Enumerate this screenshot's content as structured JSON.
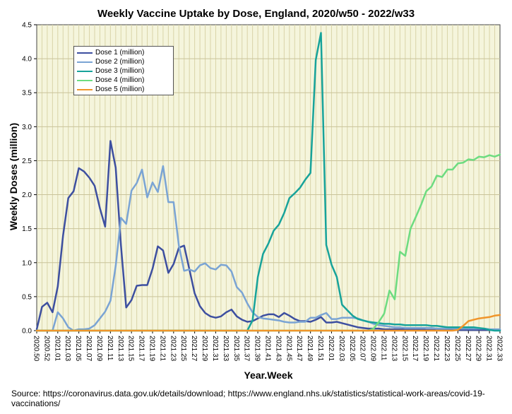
{
  "chart_data": {
    "type": "line",
    "title": "Weekly Vaccine Uptake by Dose, England, 2020/w50 - 2022/w33",
    "xlabel": "Year.Week",
    "ylabel": "Weekly Doses (million)",
    "ylim": [
      0,
      4.5
    ],
    "yticks": [
      "0.0",
      "0.5",
      "1.0",
      "1.5",
      "2.0",
      "2.5",
      "3.0",
      "3.5",
      "4.0",
      "4.5"
    ],
    "grid": true,
    "legend_position": "top-left",
    "x": [
      "2020.50",
      "2020.51",
      "2020.52",
      "2020.53",
      "2021.01",
      "2021.02",
      "2021.03",
      "2021.04",
      "2021.05",
      "2021.06",
      "2021.07",
      "2021.08",
      "2021.09",
      "2021.10",
      "2021.11",
      "2021.12",
      "2021.13",
      "2021.14",
      "2021.15",
      "2021.16",
      "2021.17",
      "2021.18",
      "2021.19",
      "2021.20",
      "2021.21",
      "2021.22",
      "2021.23",
      "2021.24",
      "2021.25",
      "2021.26",
      "2021.27",
      "2021.28",
      "2021.29",
      "2021.30",
      "2021.31",
      "2021.32",
      "2021.33",
      "2021.34",
      "2021.35",
      "2021.36",
      "2021.37",
      "2021.38",
      "2021.39",
      "2021.40",
      "2021.41",
      "2021.42",
      "2021.43",
      "2021.44",
      "2021.45",
      "2021.46",
      "2021.47",
      "2021.48",
      "2021.49",
      "2021.50",
      "2021.51",
      "2021.52",
      "2022.01",
      "2022.02",
      "2022.03",
      "2022.04",
      "2022.05",
      "2022.06",
      "2022.07",
      "2022.08",
      "2022.09",
      "2022.10",
      "2022.11",
      "2022.12",
      "2022.13",
      "2022.14",
      "2022.15",
      "2022.16",
      "2022.17",
      "2022.18",
      "2022.19",
      "2022.20",
      "2022.21",
      "2022.22",
      "2022.23",
      "2022.24",
      "2022.25",
      "2022.26",
      "2022.27",
      "2022.28",
      "2022.29",
      "2022.30",
      "2022.31",
      "2022.32",
      "2022.33"
    ],
    "xticklabels": [
      "2020.50",
      "2020.52",
      "2021.01",
      "2021.03",
      "2021.05",
      "2021.07",
      "2021.09",
      "2021.11",
      "2021.13",
      "2021.15",
      "2021.17",
      "2021.19",
      "2021.21",
      "2021.23",
      "2021.25",
      "2021.27",
      "2021.29",
      "2021.31",
      "2021.33",
      "2021.35",
      "2021.37",
      "2021.39",
      "2021.41",
      "2021.43",
      "2021.45",
      "2021.47",
      "2021.49",
      "2021.51",
      "2022.01",
      "2022.03",
      "2022.05",
      "2022.07",
      "2022.09",
      "2022.11",
      "2022.13",
      "2022.15",
      "2022.17",
      "2022.19",
      "2022.21",
      "2022.23",
      "2022.25",
      "2022.27",
      "2022.29",
      "2022.31",
      "2022.33"
    ],
    "series": [
      {
        "name": "Dose 1 (million)",
        "color": "#3d4fa0",
        "values": [
          0.02,
          0.35,
          0.41,
          0.27,
          0.65,
          1.4,
          1.95,
          2.05,
          2.39,
          2.34,
          2.25,
          2.13,
          1.8,
          1.53,
          2.79,
          2.4,
          1.25,
          0.34,
          0.45,
          0.66,
          0.67,
          0.67,
          0.91,
          1.24,
          1.18,
          0.85,
          0.98,
          1.22,
          1.25,
          0.9,
          0.55,
          0.36,
          0.26,
          0.21,
          0.19,
          0.21,
          0.27,
          0.31,
          0.21,
          0.16,
          0.13,
          0.14,
          0.18,
          0.22,
          0.24,
          0.24,
          0.2,
          0.26,
          0.22,
          0.17,
          0.14,
          0.14,
          0.13,
          0.16,
          0.2,
          0.12,
          0.12,
          0.13,
          0.11,
          0.09,
          0.07,
          0.05,
          0.04,
          0.03,
          0.03,
          0.03,
          0.02,
          0.02,
          0.02,
          0.02,
          0.02,
          0.02,
          0.02,
          0.02,
          0.01,
          0.01,
          0.01,
          0.01,
          0.01,
          0.01,
          0.01,
          0.01,
          0.01,
          0.01,
          0.01,
          0.01,
          0.01,
          0.01,
          0.01
        ]
      },
      {
        "name": "Dose 2  (million)",
        "color": "#7aa4d4",
        "values": [
          0.0,
          0.0,
          0.0,
          0.0,
          0.27,
          0.18,
          0.05,
          0.0,
          0.02,
          0.02,
          0.03,
          0.08,
          0.18,
          0.28,
          0.44,
          0.95,
          1.66,
          1.57,
          2.06,
          2.17,
          2.37,
          1.96,
          2.18,
          2.04,
          2.42,
          1.89,
          1.89,
          1.25,
          0.88,
          0.9,
          0.87,
          0.96,
          0.99,
          0.92,
          0.9,
          0.97,
          0.96,
          0.87,
          0.64,
          0.56,
          0.4,
          0.27,
          0.2,
          0.18,
          0.17,
          0.16,
          0.15,
          0.13,
          0.12,
          0.12,
          0.13,
          0.13,
          0.19,
          0.19,
          0.23,
          0.26,
          0.17,
          0.17,
          0.19,
          0.19,
          0.19,
          0.18,
          0.15,
          0.13,
          0.1,
          0.08,
          0.07,
          0.06,
          0.05,
          0.05,
          0.04,
          0.04,
          0.04,
          0.04,
          0.04,
          0.04,
          0.03,
          0.03,
          0.03,
          0.03,
          0.03,
          0.03,
          0.03,
          0.03,
          0.03,
          0.03,
          0.02,
          0.02,
          0.02
        ]
      },
      {
        "name": "Dose 3  (million)",
        "color": "#17a39a",
        "values": [
          0,
          0,
          0,
          0,
          0,
          0,
          0,
          0,
          0,
          0,
          0,
          0,
          0,
          0,
          0,
          0,
          0,
          0,
          0,
          0,
          0,
          0,
          0,
          0,
          0,
          0,
          0,
          0,
          0,
          0,
          0,
          0,
          0,
          0,
          0,
          0,
          0,
          0,
          0,
          0,
          0,
          0.15,
          0.79,
          1.13,
          1.28,
          1.47,
          1.56,
          1.73,
          1.95,
          2.02,
          2.1,
          2.22,
          2.32,
          3.98,
          4.38,
          1.26,
          0.97,
          0.79,
          0.38,
          0.3,
          0.22,
          0.17,
          0.15,
          0.13,
          0.12,
          0.11,
          0.1,
          0.1,
          0.09,
          0.09,
          0.08,
          0.08,
          0.08,
          0.08,
          0.08,
          0.07,
          0.07,
          0.06,
          0.05,
          0.05,
          0.05,
          0.05,
          0.05,
          0.05,
          0.04,
          0.03,
          0.01,
          0.0,
          0.0
        ]
      },
      {
        "name": "Dose 4  (million)",
        "color": "#6ddc80",
        "values": [
          0,
          0,
          0,
          0,
          0,
          0,
          0,
          0,
          0,
          0,
          0,
          0,
          0,
          0,
          0,
          0,
          0,
          0,
          0,
          0,
          0,
          0,
          0,
          0,
          0,
          0,
          0,
          0,
          0,
          0,
          0,
          0,
          0,
          0,
          0,
          0,
          0,
          0,
          0,
          0,
          0,
          0,
          0,
          0,
          0,
          0,
          0,
          0,
          0,
          0,
          0,
          0,
          0,
          0,
          0,
          0,
          0,
          0,
          0,
          0,
          0,
          0,
          0,
          0,
          0.03,
          0.13,
          0.25,
          0.59,
          0.46,
          1.16,
          1.1,
          1.5,
          1.67,
          1.85,
          2.05,
          2.12,
          2.28,
          2.26,
          2.37,
          2.37,
          2.46,
          2.47,
          2.52,
          2.51,
          2.56,
          2.55,
          2.58,
          2.56,
          2.59
        ]
      },
      {
        "name": "Dose 5  (million)",
        "color": "#f0952a",
        "values": [
          0,
          0,
          0,
          0,
          0,
          0,
          0,
          0,
          0,
          0,
          0,
          0,
          0,
          0,
          0,
          0,
          0,
          0,
          0,
          0,
          0,
          0,
          0,
          0,
          0,
          0,
          0,
          0,
          0,
          0,
          0,
          0,
          0,
          0,
          0,
          0,
          0,
          0,
          0,
          0,
          0,
          0,
          0,
          0,
          0,
          0,
          0,
          0,
          0,
          0,
          0,
          0,
          0,
          0,
          0,
          0,
          0,
          0,
          0,
          0,
          0,
          0,
          0,
          0,
          0,
          0,
          0,
          0,
          0,
          0,
          0,
          0,
          0,
          0,
          0,
          0,
          0,
          0,
          0,
          0,
          0.01,
          0.07,
          0.14,
          0.16,
          0.18,
          0.19,
          0.2,
          0.22,
          0.23
        ]
      }
    ]
  },
  "source": "Source:  https://coronavirus.data.gov.uk/details/download; https://www.england.nhs.uk/statistics/statistical-work-areas/covid-19-vaccinations/",
  "colors": {
    "plot_background": "#f5f5dc",
    "grid": "#d9d4a8",
    "axis": "#000000"
  }
}
